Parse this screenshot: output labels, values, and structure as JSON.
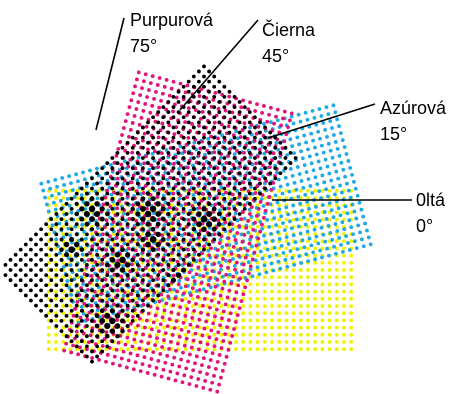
{
  "screens": [
    {
      "name": "yellow",
      "color": "#f2f200",
      "label": "0ltá",
      "angle_text": "0°",
      "angle": 0
    },
    {
      "name": "cyan",
      "color": "#1fa9e6",
      "label": "Azúrová",
      "angle_text": "15°",
      "angle": 15
    },
    {
      "name": "magenta",
      "color": "#e0147a",
      "label": "Purpurová",
      "angle_text": "75°",
      "angle": 75
    },
    {
      "name": "black",
      "color": "#000000",
      "label": "Čierna",
      "angle_text": "45°",
      "angle": 45
    }
  ]
}
